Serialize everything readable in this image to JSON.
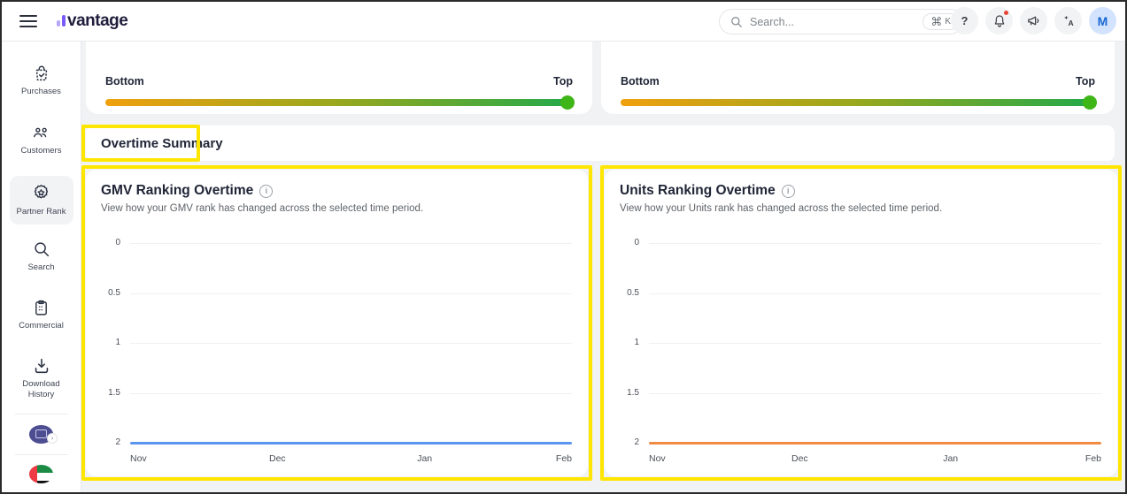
{
  "topbar": {
    "logo_text": "vantage",
    "search": {
      "placeholder": "Search...",
      "shortcut_cmd": "⌘",
      "shortcut_key": "K"
    },
    "help_glyph": "?",
    "avatar_initial": "M"
  },
  "sidebar": {
    "items": [
      {
        "label": "Purchases",
        "active": false
      },
      {
        "label": "Customers",
        "active": false
      },
      {
        "label": "Partner Rank",
        "active": true
      },
      {
        "label": "Search",
        "active": false
      },
      {
        "label": "Commercial",
        "active": false
      },
      {
        "label": "Download History",
        "active": false
      }
    ]
  },
  "rank_cards": [
    {
      "left_label": "Bottom",
      "right_label": "Top"
    },
    {
      "left_label": "Bottom",
      "right_label": "Top"
    }
  ],
  "section": {
    "title": "Overtime Summary"
  },
  "chart_data": [
    {
      "type": "line",
      "title": "GMV Ranking Overtime",
      "info_glyph": "i",
      "subtitle": "View how your GMV rank has changed across the selected time period.",
      "x": [
        "Nov",
        "Dec",
        "Jan",
        "Feb"
      ],
      "y_ticks": [
        "0",
        "0.5",
        "1",
        "1.5",
        "2"
      ],
      "ylim": [
        0,
        2
      ],
      "y_inverted": true,
      "grid": true,
      "legend": "none",
      "series": [
        {
          "name": "GMV Rank",
          "values": [
            2,
            2,
            2,
            2
          ],
          "color": "#5b95f0"
        }
      ]
    },
    {
      "type": "line",
      "title": "Units Ranking Overtime",
      "info_glyph": "i",
      "subtitle": "View how your Units rank has changed across the selected time period.",
      "x": [
        "Nov",
        "Dec",
        "Jan",
        "Feb"
      ],
      "y_ticks": [
        "0",
        "0.5",
        "1",
        "1.5",
        "2"
      ],
      "ylim": [
        0,
        2
      ],
      "y_inverted": true,
      "grid": true,
      "legend": "none",
      "series": [
        {
          "name": "Units Rank",
          "values": [
            2,
            2,
            2,
            2
          ],
          "color": "#f18b44"
        }
      ]
    }
  ],
  "colors": {
    "highlight": "#ffe600",
    "gradient_start": "#f0a00e",
    "gradient_mid": "#98a81e",
    "gradient_end": "#22a94a",
    "slider_dot": "#3fb618"
  }
}
